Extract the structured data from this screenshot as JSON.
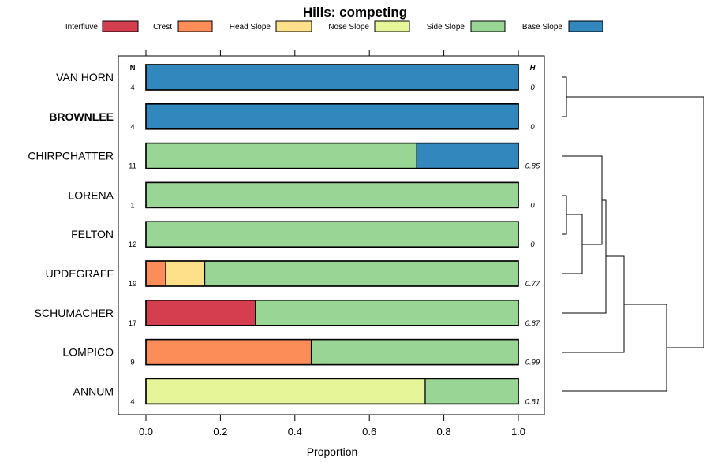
{
  "chart_data": {
    "type": "bar",
    "orientation": "horizontal",
    "stacked": true,
    "title": "Hills: competing",
    "xlabel": "Proportion",
    "ylabel": "",
    "xlim": [
      0,
      1
    ],
    "x_ticks": [
      "0.0",
      "0.2",
      "0.4",
      "0.6",
      "0.8",
      "1.0"
    ],
    "legend_placement": "top",
    "n_header": "N",
    "h_header": "H",
    "series": [
      {
        "name": "Interfluve",
        "color": "#D53E4F"
      },
      {
        "name": "Crest",
        "color": "#FC8D59"
      },
      {
        "name": "Head Slope",
        "color": "#FEE08B"
      },
      {
        "name": "Nose Slope",
        "color": "#E6F598"
      },
      {
        "name": "Side Slope",
        "color": "#99D594"
      },
      {
        "name": "Base Slope",
        "color": "#3288BD"
      }
    ],
    "rows": [
      {
        "label": "VAN HORN",
        "bold": false,
        "n": "4",
        "h": "0",
        "values": [
          0,
          0,
          0,
          0,
          0,
          1
        ]
      },
      {
        "label": "BROWNLEE",
        "bold": true,
        "n": "4",
        "h": "0",
        "values": [
          0,
          0,
          0,
          0,
          0,
          1
        ]
      },
      {
        "label": "CHIRPCHATTER",
        "bold": false,
        "n": "11",
        "h": "0.85",
        "values": [
          0,
          0,
          0,
          0,
          0.727,
          0.273
        ]
      },
      {
        "label": "LORENA",
        "bold": false,
        "n": "1",
        "h": "0",
        "values": [
          0,
          0,
          0,
          0,
          1,
          0
        ]
      },
      {
        "label": "FELTON",
        "bold": false,
        "n": "12",
        "h": "0",
        "values": [
          0,
          0,
          0,
          0,
          1,
          0
        ]
      },
      {
        "label": "UPDEGRAFF",
        "bold": false,
        "n": "19",
        "h": "0.77",
        "values": [
          0,
          0.053,
          0.105,
          0,
          0.842,
          0
        ]
      },
      {
        "label": "SCHUMACHER",
        "bold": false,
        "n": "17",
        "h": "0.87",
        "values": [
          0.294,
          0,
          0,
          0,
          0.706,
          0
        ]
      },
      {
        "label": "LOMPICO",
        "bold": false,
        "n": "9",
        "h": "0.99",
        "values": [
          0,
          0.444,
          0,
          0,
          0.556,
          0
        ]
      },
      {
        "label": "ANNUM",
        "bold": false,
        "n": "4",
        "h": "0.81",
        "values": [
          0,
          0,
          0,
          0.75,
          0.25,
          0
        ]
      }
    ],
    "dendrogram": true
  }
}
